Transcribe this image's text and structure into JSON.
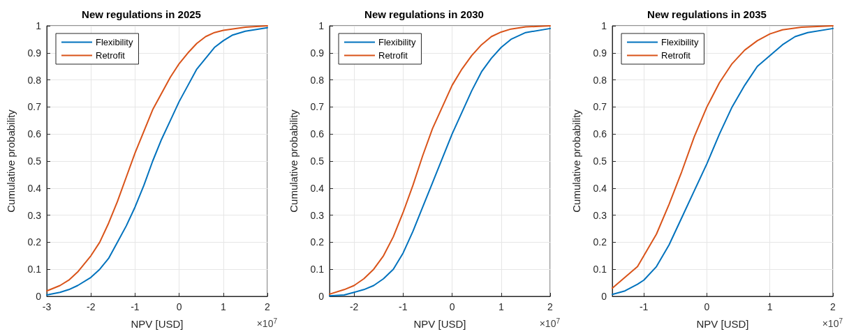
{
  "chart_data": [
    {
      "type": "line",
      "title": "New regulations in 2025",
      "xlabel": "NPV [USD]",
      "ylabel": "Cumulative probability",
      "annotations": [
        "×10$^{7}$"
      ],
      "xlim": [
        -3,
        2
      ],
      "xticks": [
        -3,
        -2,
        -1,
        0,
        1,
        2
      ],
      "ylim": [
        0,
        1
      ],
      "yticks": [
        0,
        0.1,
        0.2,
        0.3,
        0.4,
        0.5,
        0.6,
        0.7,
        0.8,
        0.9,
        1
      ],
      "grid": true,
      "legend": "top left",
      "marker": "none",
      "line_style": "solid",
      "series": [
        {
          "name": "Flexibility",
          "color": "#0072bd",
          "x": [
            -3,
            -2.7,
            -2.5,
            -2.3,
            -2,
            -1.8,
            -1.6,
            -1.4,
            -1.2,
            -1,
            -0.8,
            -0.6,
            -0.4,
            -0.2,
            0,
            0.2,
            0.4,
            0.6,
            0.8,
            1,
            1.2,
            1.5,
            2
          ],
          "values": [
            0.005,
            0.015,
            0.025,
            0.04,
            0.07,
            0.1,
            0.14,
            0.2,
            0.26,
            0.33,
            0.41,
            0.5,
            0.58,
            0.65,
            0.72,
            0.78,
            0.84,
            0.88,
            0.92,
            0.945,
            0.965,
            0.98,
            0.993
          ]
        },
        {
          "name": "Retrofit",
          "color": "#d95319",
          "x": [
            -3,
            -2.7,
            -2.5,
            -2.3,
            -2,
            -1.8,
            -1.6,
            -1.4,
            -1.2,
            -1,
            -0.8,
            -0.6,
            -0.4,
            -0.2,
            0,
            0.2,
            0.4,
            0.6,
            0.8,
            1,
            1.5,
            2
          ],
          "values": [
            0.02,
            0.04,
            0.06,
            0.09,
            0.15,
            0.2,
            0.27,
            0.35,
            0.44,
            0.53,
            0.61,
            0.69,
            0.75,
            0.81,
            0.86,
            0.9,
            0.935,
            0.96,
            0.975,
            0.983,
            0.995,
            1
          ]
        }
      ]
    },
    {
      "type": "line",
      "title": "New regulations in 2030",
      "xlabel": "NPV [USD]",
      "ylabel": "Cumulative probability",
      "annotations": [
        "×10$^{7}$"
      ],
      "xlim": [
        -2.5,
        2
      ],
      "xticks": [
        -2,
        -1,
        0,
        1,
        2
      ],
      "ylim": [
        0,
        1
      ],
      "yticks": [
        0,
        0.1,
        0.2,
        0.3,
        0.4,
        0.5,
        0.6,
        0.7,
        0.8,
        0.9,
        1
      ],
      "grid": true,
      "legend": "top left",
      "marker": "none",
      "line_style": "solid",
      "series": [
        {
          "name": "Flexibility",
          "color": "#0072bd",
          "x": [
            -2.5,
            -2.2,
            -2,
            -1.8,
            -1.6,
            -1.4,
            -1.2,
            -1,
            -0.8,
            -0.6,
            -0.4,
            -0.2,
            0,
            0.2,
            0.4,
            0.6,
            0.8,
            1,
            1.2,
            1.5,
            2
          ],
          "values": [
            0.002,
            0.005,
            0.015,
            0.025,
            0.04,
            0.065,
            0.1,
            0.16,
            0.24,
            0.33,
            0.42,
            0.51,
            0.6,
            0.68,
            0.76,
            0.83,
            0.88,
            0.92,
            0.95,
            0.975,
            0.99
          ]
        },
        {
          "name": "Retrofit",
          "color": "#d95319",
          "x": [
            -2.5,
            -2.2,
            -2,
            -1.8,
            -1.6,
            -1.4,
            -1.2,
            -1,
            -0.8,
            -0.6,
            -0.4,
            -0.2,
            0,
            0.2,
            0.4,
            0.6,
            0.8,
            1,
            1.2,
            1.5,
            2
          ],
          "values": [
            0.008,
            0.025,
            0.04,
            0.065,
            0.1,
            0.15,
            0.22,
            0.31,
            0.41,
            0.52,
            0.62,
            0.7,
            0.78,
            0.84,
            0.89,
            0.93,
            0.96,
            0.977,
            0.988,
            0.996,
            1
          ]
        }
      ]
    },
    {
      "type": "line",
      "title": "New regulations in 2035",
      "xlabel": "NPV [USD]",
      "ylabel": "Cumulative probability",
      "annotations": [
        "×10$^{7}$"
      ],
      "xlim": [
        -1.5,
        2
      ],
      "xticks": [
        -1,
        0,
        1,
        2
      ],
      "ylim": [
        0,
        1
      ],
      "yticks": [
        0,
        0.1,
        0.2,
        0.3,
        0.4,
        0.5,
        0.6,
        0.7,
        0.8,
        0.9,
        1
      ],
      "grid": true,
      "legend": "top left",
      "marker": "none",
      "line_style": "solid",
      "series": [
        {
          "name": "Flexibility",
          "color": "#0072bd",
          "x": [
            -1.5,
            -1.3,
            -1.1,
            -1,
            -0.8,
            -0.6,
            -0.4,
            -0.2,
            0,
            0.2,
            0.4,
            0.6,
            0.8,
            1,
            1.2,
            1.4,
            1.6,
            2
          ],
          "values": [
            0.007,
            0.02,
            0.045,
            0.06,
            0.11,
            0.19,
            0.29,
            0.39,
            0.49,
            0.6,
            0.7,
            0.78,
            0.85,
            0.89,
            0.93,
            0.96,
            0.975,
            0.99
          ]
        },
        {
          "name": "Retrofit",
          "color": "#d95319",
          "x": [
            -1.5,
            -1.3,
            -1.1,
            -1,
            -0.8,
            -0.6,
            -0.4,
            -0.2,
            0,
            0.2,
            0.4,
            0.6,
            0.8,
            1,
            1.2,
            1.5,
            2
          ],
          "values": [
            0.03,
            0.07,
            0.11,
            0.15,
            0.23,
            0.34,
            0.46,
            0.59,
            0.7,
            0.79,
            0.86,
            0.91,
            0.945,
            0.97,
            0.985,
            0.995,
            1
          ]
        }
      ]
    }
  ]
}
